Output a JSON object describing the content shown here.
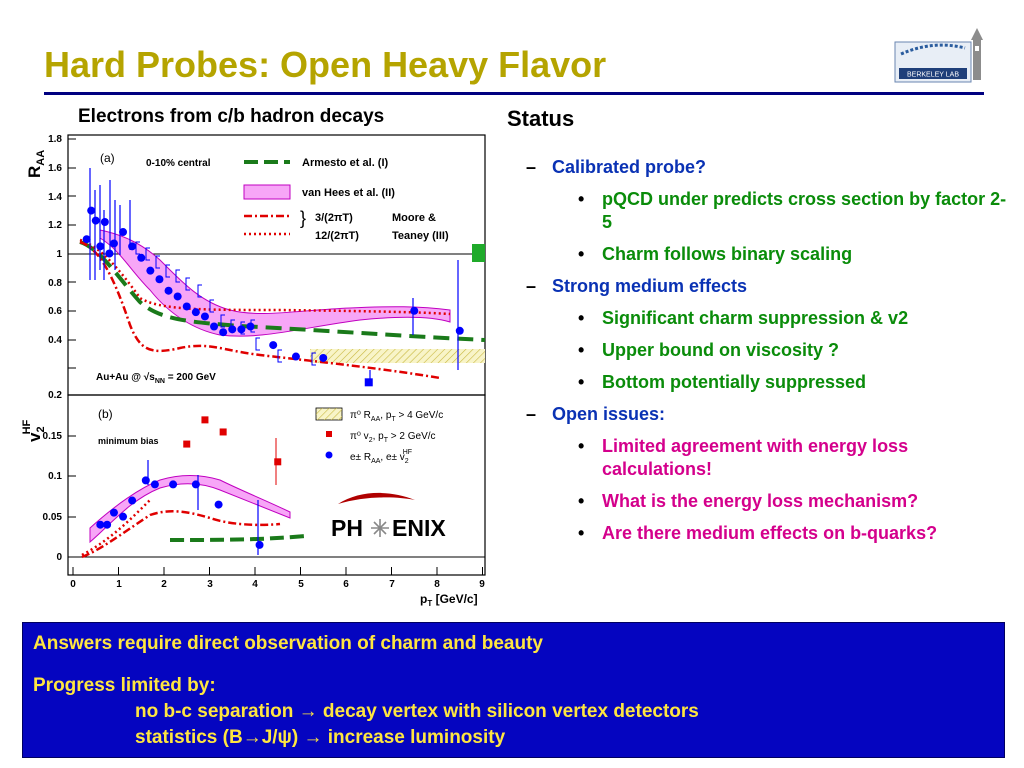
{
  "slide": {
    "title": "Hard Probes: Open Heavy Flavor",
    "logo_text": "Berkeley Lab"
  },
  "figure": {
    "heading": "Electrons from c/b hadron decays",
    "top_panel": {
      "label": "(a)",
      "centrality": "0-10% central",
      "system": "Au+Au @ √s",
      "system_sub": "NN",
      "system_tail": " = 200 GeV",
      "ylabel": "R",
      "ylabel_sub": "AA",
      "yticks": [
        "0.2",
        "0.4",
        "0.6",
        "0.8",
        "1",
        "1.2",
        "1.4",
        "1.6",
        "1.8"
      ],
      "legend": {
        "armesto": "Armesto et al. (I)",
        "vanhees": "van Hees et al. (II)",
        "moore_a": "3/(2πT)",
        "moore_b": "12/(2πT)",
        "moore_label_a": "Moore &",
        "moore_label_b": "Teaney (III)"
      }
    },
    "bottom_panel": {
      "label": "(b)",
      "centrality": "minimum bias",
      "ylabel": "v",
      "ylabel_sub": "2",
      "ylabel_sup": "HF",
      "yticks": [
        "0",
        "0.05",
        "0.1",
        "0.15"
      ],
      "legend": {
        "band": "π⁰ R",
        "band_sub": "AA",
        "band_tail": ", p",
        "band_sub2": "T",
        "band_tail2": " > 4 GeV/c",
        "red": "π⁰ v",
        "red_sub": "2",
        "red_tail": ", p",
        "red_sub2": "T",
        "red_tail2": " > 2 GeV/c",
        "blue": "e± R",
        "blue_sub": "AA",
        "blue_tail": ", e± v",
        "blue_sub2": "2",
        "blue_sup2": "HF"
      },
      "phenix_left": "PH",
      "phenix_right": "ENIX"
    },
    "xticks": [
      "0",
      "1",
      "2",
      "3",
      "4",
      "5",
      "6",
      "7",
      "8",
      "9"
    ],
    "xlabel": "p",
    "xlabel_sub": "T",
    "xlabel_tail": " [GeV/c]",
    "colors": {
      "blue": "#0000ff",
      "red": "#e00000",
      "green": "#1a7a1a",
      "magenta": "#ff33ff",
      "band": "#f5f0b0"
    }
  },
  "chart_data": [
    {
      "type": "scatter",
      "panel": "R_AA vs p_T (0-10% central)",
      "xlabel": "p_T [GeV/c]",
      "ylabel": "R_AA",
      "xlim": [
        0,
        9
      ],
      "ylim": [
        0,
        1.8
      ],
      "series": [
        {
          "name": "e± R_AA",
          "x": [
            0.3,
            0.4,
            0.5,
            0.6,
            0.7,
            0.8,
            0.9,
            1.1,
            1.3,
            1.5,
            1.7,
            1.9,
            2.1,
            2.3,
            2.5,
            2.7,
            2.9,
            3.1,
            3.3,
            3.5,
            3.7,
            3.9,
            4.4,
            4.9,
            5.5,
            6.5,
            7.5,
            8.5
          ],
          "y": [
            1.1,
            1.3,
            1.23,
            1.05,
            1.22,
            1.0,
            1.07,
            1.15,
            1.05,
            0.97,
            0.88,
            0.82,
            0.74,
            0.7,
            0.63,
            0.59,
            0.56,
            0.49,
            0.45,
            0.47,
            0.47,
            0.49,
            0.36,
            0.28,
            0.27,
            0.1,
            0.6,
            0.46
          ]
        },
        {
          "name": "Armesto et al. (I)",
          "x": [
            0.3,
            1.0,
            1.5,
            2.0,
            3.0,
            4.0,
            5.0,
            6.0,
            7.0,
            8.0,
            9.0
          ],
          "y": [
            1.05,
            0.95,
            0.7,
            0.6,
            0.5,
            0.47,
            0.45,
            0.43,
            0.42,
            0.41,
            0.4
          ]
        },
        {
          "name": "van Hees et al. (II)",
          "x": [
            0.5,
            1.0,
            1.5,
            2.0,
            2.5,
            3.0,
            3.5,
            4.0,
            5.0,
            6.0,
            7.0,
            8.0
          ],
          "y_low": [
            1.0,
            0.9,
            0.7,
            0.55,
            0.45,
            0.42,
            0.42,
            0.43,
            0.44,
            0.46,
            0.48,
            0.5
          ],
          "y_high": [
            1.1,
            1.0,
            0.9,
            0.78,
            0.6,
            0.5,
            0.47,
            0.47,
            0.49,
            0.51,
            0.53,
            0.55
          ]
        },
        {
          "name": "3/(2πT)",
          "x": [
            0.3,
            0.8,
            1.2,
            1.6,
            2.0,
            2.5,
            3.0,
            4.0,
            5.0,
            6.0,
            7.0,
            8.0
          ],
          "y": [
            1.05,
            0.95,
            0.6,
            0.35,
            0.3,
            0.32,
            0.3,
            0.23,
            0.18,
            0.14,
            0.12,
            0.1
          ]
        },
        {
          "name": "12/(2πT)",
          "x": [
            0.3,
            1.0,
            1.5,
            2.0,
            3.0,
            4.0,
            5.0,
            6.0,
            7.0,
            8.0
          ],
          "y": [
            1.05,
            0.95,
            0.7,
            0.6,
            0.58,
            0.58,
            0.57,
            0.56,
            0.56,
            0.55
          ]
        }
      ]
    },
    {
      "type": "scatter",
      "panel": "v2 vs p_T (minimum bias)",
      "xlabel": "p_T [GeV/c]",
      "ylabel": "v2^HF",
      "xlim": [
        0,
        9
      ],
      "ylim": [
        -0.01,
        0.2
      ],
      "series": [
        {
          "name": "e± v2^HF",
          "x": [
            0.6,
            0.75,
            0.9,
            1.1,
            1.3,
            1.6,
            1.8,
            2.2,
            2.7,
            3.2,
            4.1
          ],
          "y": [
            0.04,
            0.04,
            0.055,
            0.05,
            0.07,
            0.095,
            0.09,
            0.09,
            0.09,
            0.065,
            0.015
          ]
        },
        {
          "name": "π⁰ v2, p_T > 2 GeV/c",
          "x": [
            2.5,
            2.9,
            3.3,
            4.5
          ],
          "y": [
            0.14,
            0.17,
            0.155,
            0.118
          ]
        }
      ]
    }
  ],
  "status": {
    "heading": "Status",
    "items": [
      {
        "text": "Calibrated probe?",
        "children": [
          "pQCD under predicts cross section by factor 2-5",
          "Charm follows binary scaling"
        ],
        "child_class": "green"
      },
      {
        "text": "Strong medium effects",
        "children": [
          "Significant charm suppression & v2",
          "Upper bound on viscosity ?",
          "Bottom potentially suppressed"
        ],
        "child_class": "green"
      },
      {
        "text": "Open issues:",
        "children": [
          "Limited agreement with energy loss calculations!",
          "What is the energy loss mechanism?",
          "Are there medium effects on b-quarks?"
        ],
        "child_class": "magenta"
      }
    ]
  },
  "bottom_box": {
    "line1": "Answers require direct observation of charm and beauty",
    "line2": "Progress limited by:",
    "line3": "no b-c separation  → decay vertex with silicon vertex detectors",
    "line4": "statistics (B→J/ψ) → increase luminosity"
  }
}
